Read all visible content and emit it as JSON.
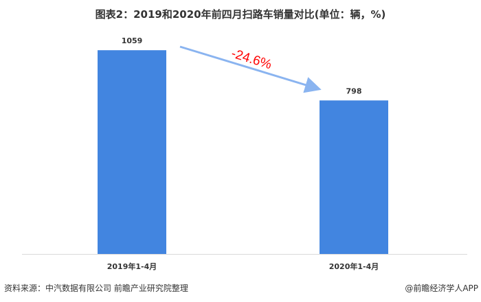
{
  "chart_data": {
    "type": "bar",
    "title": "图表2：2019和2020年前四月扫路车销量对比(单位：辆，%)",
    "categories": [
      "2019年1-4月",
      "2020年1-4月"
    ],
    "values": [
      1059,
      798
    ],
    "data_labels": [
      "1059",
      "798"
    ],
    "annotation": "-24.6%",
    "ylim": [
      0,
      1320
    ],
    "grid": false,
    "bar_color": "#4285E0",
    "arrow_color": "#8AB4F0",
    "annotation_color": "#FF0000"
  },
  "footer": {
    "source": "资料来源：中汽数据有限公司 前瞻产业研究院整理",
    "credit": "@前瞻经济学人APP"
  }
}
